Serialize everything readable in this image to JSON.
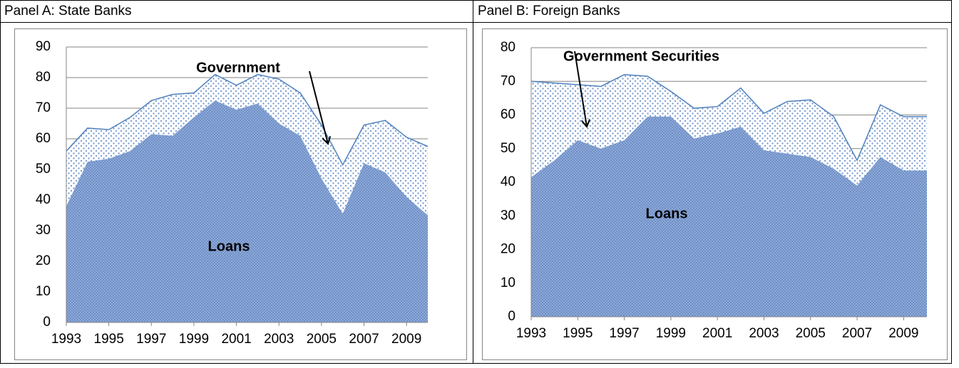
{
  "chart_data": [
    {
      "type": "area",
      "title": "Panel A: State Banks",
      "x": [
        1993,
        1994,
        1995,
        1996,
        1997,
        1998,
        1999,
        2000,
        2001,
        2002,
        2003,
        2004,
        2005,
        2006,
        2007,
        2008,
        2009,
        2010
      ],
      "xticks": [
        1993,
        1995,
        1997,
        1999,
        2001,
        2003,
        2005,
        2007,
        2009
      ],
      "ylim": [
        0,
        90
      ],
      "yticks": [
        0,
        10,
        20,
        30,
        40,
        50,
        60,
        70,
        80,
        90
      ],
      "grid": true,
      "stacked": true,
      "series": [
        {
          "name": "Loans",
          "color": "#7f9fd1",
          "values": [
            38,
            52.5,
            53.5,
            56,
            61.5,
            61,
            67,
            72.5,
            69.5,
            71.5,
            65,
            61,
            47,
            35.5,
            52,
            49,
            41,
            35
          ]
        },
        {
          "name": "Government",
          "color": "#4f81bd",
          "values": [
            18,
            11,
            9.5,
            11,
            11,
            13.5,
            8,
            8.5,
            8,
            9.5,
            14.5,
            14,
            17.5,
            16,
            12.5,
            17,
            19.5,
            22.5
          ]
        }
      ]
    },
    {
      "type": "area",
      "title": "Panel B: Foreign Banks",
      "x": [
        1993,
        1994,
        1995,
        1996,
        1997,
        1998,
        1999,
        2000,
        2001,
        2002,
        2003,
        2004,
        2005,
        2006,
        2007,
        2008,
        2009,
        2010
      ],
      "xticks": [
        1993,
        1995,
        1997,
        1999,
        2001,
        2003,
        2005,
        2007,
        2009
      ],
      "ylim": [
        0,
        80
      ],
      "yticks": [
        0,
        10,
        20,
        30,
        40,
        50,
        60,
        70,
        80
      ],
      "grid": true,
      "stacked": true,
      "series": [
        {
          "name": "Loans",
          "color": "#7f9fd1",
          "values": [
            41.5,
            46.5,
            52.5,
            50,
            52.5,
            59.5,
            59.5,
            53,
            54.5,
            56.5,
            49.5,
            48.5,
            47.5,
            44,
            39,
            47.5,
            43.5,
            43.5
          ]
        },
        {
          "name": "Government Securities",
          "color": "#4f81bd",
          "values": [
            28.5,
            23,
            16.5,
            18.5,
            19.5,
            12,
            7.5,
            9,
            8,
            11.5,
            11,
            15.5,
            17,
            15.5,
            7.5,
            15.5,
            16,
            16
          ]
        }
      ]
    }
  ]
}
